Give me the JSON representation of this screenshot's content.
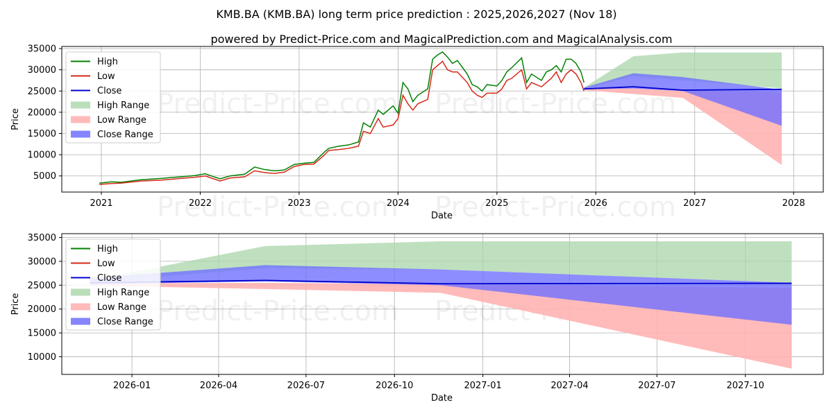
{
  "figure": {
    "title": "KMB.BA (KMB.BA) long term price prediction : 2025,2026,2027 (Nov 18)",
    "subtitle": "powered by Predict-Price.com and MagicalPrediction.com and MagicalAnalysis.com",
    "watermark": "Predict-Price.com"
  },
  "colors": {
    "high": "#008000",
    "low": "#d62718",
    "close": "#0000cc",
    "high_range": "#a9d6a9",
    "low_range": "#ffb3b3",
    "close_range": "#7070ff",
    "grid": "#b0b0b0"
  },
  "chart_data": [
    {
      "type": "line",
      "panel": "long-term",
      "xlabel": "Date",
      "ylabel": "Price",
      "xlim": [
        2020.6,
        2028.3
      ],
      "ylim": [
        1200,
        35500
      ],
      "xticks": [
        2021,
        2022,
        2023,
        2024,
        2025,
        2026,
        2027,
        2028
      ],
      "xtick_labels": [
        "2021",
        "2022",
        "2023",
        "2024",
        "2025",
        "2026",
        "2027",
        "2028"
      ],
      "yticks": [
        5000,
        10000,
        15000,
        20000,
        25000,
        30000,
        35000
      ],
      "ytick_labels": [
        "5000",
        "10000",
        "15000",
        "20000",
        "25000",
        "30000",
        "35000"
      ],
      "legend_position": "top-left",
      "legend": [
        "High",
        "Low",
        "Close",
        "High Range",
        "Low Range",
        "Close Range"
      ],
      "history": {
        "x": [
          2020.98,
          2021.1,
          2021.2,
          2021.4,
          2021.6,
          2021.8,
          2021.95,
          2022.05,
          2022.2,
          2022.3,
          2022.45,
          2022.55,
          2022.65,
          2022.75,
          2022.85,
          2022.95,
          2023.05,
          2023.15,
          2023.25,
          2023.3,
          2023.4,
          2023.5,
          2023.6,
          2023.65,
          2023.72,
          2023.8,
          2023.85,
          2023.95,
          2024.0,
          2024.05,
          2024.1,
          2024.15,
          2024.2,
          2024.3,
          2024.35,
          2024.4,
          2024.45,
          2024.5,
          2024.55,
          2024.6,
          2024.7,
          2024.75,
          2024.8,
          2024.85,
          2024.9,
          2025.0,
          2025.05,
          2025.1,
          2025.15,
          2025.25,
          2025.3,
          2025.35,
          2025.45,
          2025.5,
          2025.55,
          2025.6,
          2025.65,
          2025.7,
          2025.75,
          2025.8,
          2025.85,
          2025.88
        ],
        "high": [
          3300,
          3600,
          3500,
          4100,
          4400,
          4800,
          5100,
          5500,
          4300,
          5000,
          5400,
          7100,
          6500,
          6200,
          6400,
          7700,
          8000,
          8200,
          10500,
          11500,
          12000,
          12300,
          13000,
          17500,
          16500,
          20500,
          19500,
          21500,
          19800,
          27000,
          25500,
          22500,
          24000,
          25500,
          32500,
          33500,
          34200,
          33000,
          31500,
          32200,
          29000,
          26500,
          26000,
          25000,
          26500,
          26200,
          27500,
          29500,
          30500,
          32800,
          27000,
          29000,
          27500,
          29500,
          30000,
          31000,
          29500,
          32500,
          32500,
          31500,
          29500,
          27000
        ],
        "low": [
          3000,
          3200,
          3300,
          3800,
          4000,
          4400,
          4700,
          5000,
          3800,
          4500,
          4800,
          6200,
          5800,
          5600,
          5900,
          7200,
          7700,
          7800,
          9800,
          11000,
          11200,
          11500,
          12000,
          15500,
          15000,
          18500,
          16500,
          17000,
          18500,
          24000,
          22000,
          20500,
          22000,
          23000,
          30000,
          31000,
          32000,
          30000,
          29500,
          29500,
          27000,
          25000,
          24000,
          23500,
          24500,
          24500,
          25500,
          27500,
          28000,
          30000,
          25500,
          27000,
          26000,
          27000,
          28000,
          29500,
          27000,
          29000,
          30000,
          29000,
          27000,
          25000
        ]
      },
      "forecast": {
        "x": [
          2025.88,
          2026.38,
          2026.88,
          2027.88
        ],
        "close": [
          25500,
          26000,
          25200,
          25400
        ],
        "high_range": {
          "upper": [
            25800,
            33200,
            34100,
            34100
          ],
          "lower": [
            25600,
            28500,
            27500,
            25600
          ]
        },
        "low_range": {
          "upper": [
            25500,
            25600,
            25000,
            24800
          ],
          "lower": [
            25200,
            24300,
            23400,
            7600
          ]
        },
        "close_range": {
          "upper": [
            25800,
            29200,
            28300,
            25300
          ],
          "lower": [
            25400,
            25600,
            25000,
            16800
          ]
        }
      }
    },
    {
      "type": "line",
      "panel": "forecast-zoom",
      "xlabel": "Date",
      "ylabel": "Price",
      "xlim": [
        2025.8,
        2027.97
      ],
      "ylim": [
        6300,
        35800
      ],
      "xticks": [
        2026.0,
        2026.247,
        2026.496,
        2026.748,
        2027.0,
        2027.247,
        2027.496,
        2027.748
      ],
      "xtick_labels": [
        "2026-01",
        "2026-04",
        "2026-07",
        "2026-10",
        "2027-01",
        "2027-04",
        "2027-07",
        "2027-10"
      ],
      "yticks": [
        10000,
        15000,
        20000,
        25000,
        30000,
        35000
      ],
      "ytick_labels": [
        "10000",
        "15000",
        "20000",
        "25000",
        "30000",
        "35000"
      ],
      "legend_position": "top-left",
      "legend": [
        "High",
        "Low",
        "Close",
        "High Range",
        "Low Range",
        "Close Range"
      ],
      "forecast": {
        "x": [
          2025.88,
          2026.38,
          2026.88,
          2027.88
        ],
        "close": [
          25500,
          26000,
          25300,
          25400
        ],
        "high_range": {
          "upper": [
            26000,
            33200,
            34200,
            34200
          ],
          "lower": [
            25600,
            28600,
            28300,
            25500
          ]
        },
        "low_range": {
          "upper": [
            25400,
            25500,
            25200,
            24500
          ],
          "lower": [
            24900,
            24200,
            23400,
            7500
          ]
        },
        "close_range": {
          "upper": [
            26500,
            29200,
            28300,
            25500
          ],
          "lower": [
            25200,
            25800,
            25000,
            16700
          ]
        }
      }
    }
  ]
}
